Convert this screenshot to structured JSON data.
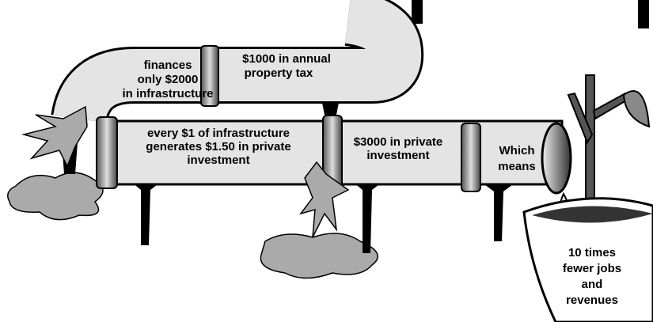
{
  "labels": {
    "upper_left": {
      "lines": [
        "finances",
        "only $2000",
        "in infrastructure"
      ]
    },
    "upper_right": {
      "lines": [
        "$1000 in annual",
        "property tax"
      ]
    },
    "lower_left": {
      "lines": [
        "every $1 of infrastructure",
        "generates $1.50 in private",
        "investment"
      ]
    },
    "lower_middle": {
      "lines": [
        "$3000 in private",
        "investment"
      ]
    },
    "lower_right": {
      "lines": [
        "Which",
        "means"
      ]
    },
    "pot": {
      "lines": [
        "10 times",
        "fewer jobs",
        "and",
        "revenues"
      ]
    }
  }
}
